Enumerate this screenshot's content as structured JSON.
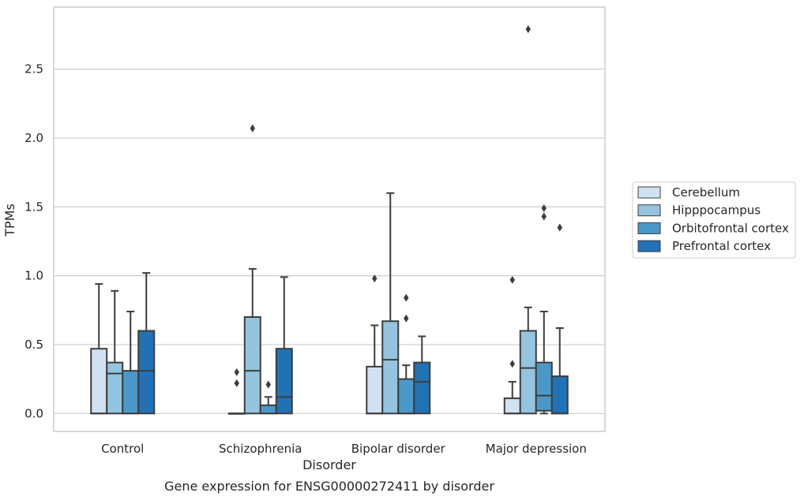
{
  "caption": "Gene expression for ENSG00000272411 by disorder",
  "chart_data": {
    "type": "box",
    "xlabel": "Disorder",
    "ylabel": "TPMs",
    "ylim": [
      -0.13,
      2.95
    ],
    "yticks": [
      "0.0",
      "0.5",
      "1.0",
      "1.5",
      "2.0",
      "2.5"
    ],
    "grid": "horizontal",
    "legend_position": "right",
    "categories": [
      "Control",
      "Schizophrenia",
      "Bipolar disorder",
      "Major depression"
    ],
    "series": [
      {
        "name": "Cerebellum",
        "color": "#d0e1f2",
        "boxes": [
          {
            "q1": 0.0,
            "median": 0.0,
            "q3": 0.47,
            "whisker_low": 0.0,
            "whisker_high": 0.94,
            "outliers": []
          },
          {
            "q1": 0.0,
            "median": 0.0,
            "q3": 0.0,
            "whisker_low": 0.0,
            "whisker_high": 0.0,
            "outliers": [
              0.3,
              0.22
            ]
          },
          {
            "q1": 0.0,
            "median": 0.0,
            "q3": 0.34,
            "whisker_low": 0.0,
            "whisker_high": 0.64,
            "outliers": [
              0.98
            ]
          },
          {
            "q1": 0.0,
            "median": 0.0,
            "q3": 0.11,
            "whisker_low": 0.0,
            "whisker_high": 0.23,
            "outliers": [
              0.36,
              0.97
            ]
          }
        ]
      },
      {
        "name": "Hipppocampus",
        "color": "#94c4df",
        "boxes": [
          {
            "q1": 0.0,
            "median": 0.29,
            "q3": 0.37,
            "whisker_low": 0.0,
            "whisker_high": 0.89,
            "outliers": []
          },
          {
            "q1": 0.0,
            "median": 0.31,
            "q3": 0.7,
            "whisker_low": 0.0,
            "whisker_high": 1.05,
            "outliers": [
              2.07
            ]
          },
          {
            "q1": 0.0,
            "median": 0.39,
            "q3": 0.67,
            "whisker_low": 0.0,
            "whisker_high": 1.6,
            "outliers": []
          },
          {
            "q1": 0.0,
            "median": 0.33,
            "q3": 0.6,
            "whisker_low": 0.0,
            "whisker_high": 0.77,
            "outliers": [
              2.79
            ]
          }
        ]
      },
      {
        "name": "Orbitofrontal cortex",
        "color": "#4a98c9",
        "boxes": [
          {
            "q1": 0.0,
            "median": 0.0,
            "q3": 0.31,
            "whisker_low": 0.0,
            "whisker_high": 0.74,
            "outliers": []
          },
          {
            "q1": 0.0,
            "median": 0.0,
            "q3": 0.06,
            "whisker_low": 0.0,
            "whisker_high": 0.12,
            "outliers": [
              0.21
            ]
          },
          {
            "q1": 0.0,
            "median": 0.0,
            "q3": 0.25,
            "whisker_low": 0.0,
            "whisker_high": 0.35,
            "outliers": [
              0.69,
              0.84
            ]
          },
          {
            "q1": 0.02,
            "median": 0.13,
            "q3": 0.37,
            "whisker_low": 0.0,
            "whisker_high": 0.74,
            "outliers": [
              1.43,
              1.49
            ]
          }
        ]
      },
      {
        "name": "Prefrontal cortex",
        "color": "#2171b5",
        "boxes": [
          {
            "q1": 0.0,
            "median": 0.31,
            "q3": 0.6,
            "whisker_low": 0.0,
            "whisker_high": 1.02,
            "outliers": []
          },
          {
            "q1": 0.0,
            "median": 0.12,
            "q3": 0.47,
            "whisker_low": 0.0,
            "whisker_high": 0.99,
            "outliers": []
          },
          {
            "q1": 0.0,
            "median": 0.23,
            "q3": 0.37,
            "whisker_low": 0.0,
            "whisker_high": 0.56,
            "outliers": []
          },
          {
            "q1": 0.0,
            "median": 0.0,
            "q3": 0.27,
            "whisker_low": 0.0,
            "whisker_high": 0.62,
            "outliers": [
              1.35
            ]
          }
        ]
      }
    ]
  }
}
